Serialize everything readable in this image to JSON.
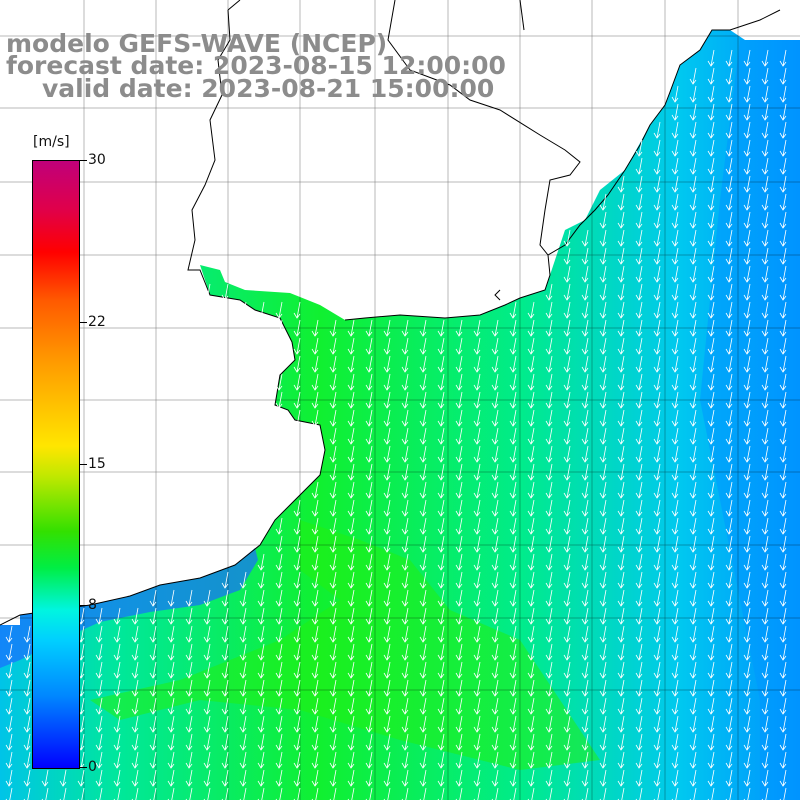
{
  "title": {
    "line1": "modelo GEFS-WAVE (NCEP)",
    "line2": "forecast date: 2023-08-15 12:00:00",
    "line3": "valid date: 2023-08-21 15:00:00"
  },
  "colorbar": {
    "unit": "[m/s]",
    "ticks": [
      {
        "label": "30",
        "value": 30
      },
      {
        "label": "22",
        "value": 22
      },
      {
        "label": "15",
        "value": 15
      },
      {
        "label": "8",
        "value": 8
      },
      {
        "label": "0",
        "value": 0
      }
    ],
    "min": 0,
    "max": 30
  },
  "map": {
    "variable": "wind speed and direction",
    "wind_direction": "from north-northeast toward south-southwest",
    "land_color": "#ffffff",
    "coast_color": "#000000",
    "grid_color": "#000000"
  }
}
